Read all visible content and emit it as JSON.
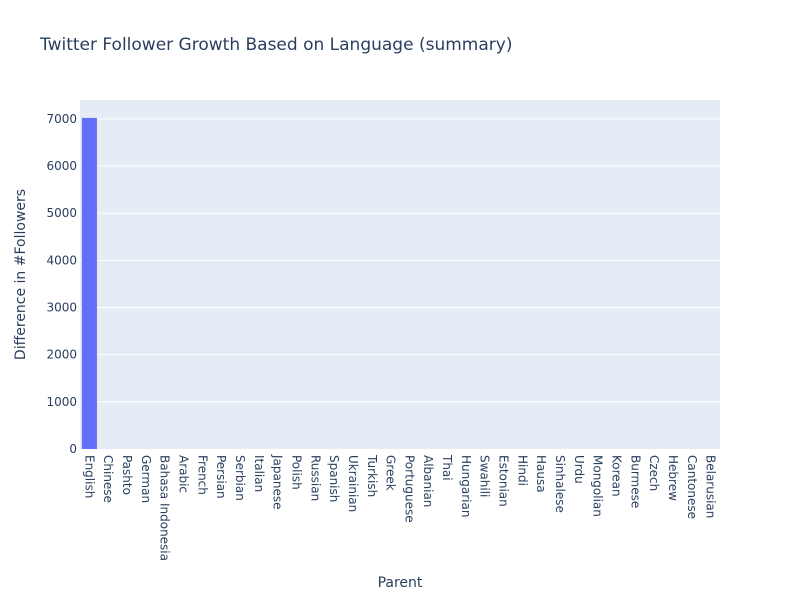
{
  "chart_data": {
    "type": "bar",
    "title": "Twitter Follower Growth Based on Language (summary)",
    "xlabel": "Parent",
    "ylabel": "Difference in #Followers",
    "categories": [
      "English",
      "Chinese",
      "Pashto",
      "German",
      "Bahasa Indonesia",
      "Arabic",
      "French",
      "Persian",
      "Serbian",
      "Italian",
      "Japanese",
      "Polish",
      "Russian",
      "Spanish",
      "Ukrainian",
      "Turkish",
      "Greek",
      "Portuguese",
      "Albanian",
      "Thai",
      "Hungarian",
      "Swahili",
      "Estonian",
      "Hindi",
      "Hausa",
      "Sinhalese",
      "Urdu",
      "Mongolian",
      "Korean",
      "Burmese",
      "Czech",
      "Hebrew",
      "Cantonese",
      "Belarusian"
    ],
    "values": [
      7020,
      0,
      0,
      0,
      0,
      0,
      0,
      0,
      0,
      0,
      0,
      0,
      0,
      0,
      0,
      0,
      0,
      0,
      0,
      0,
      0,
      0,
      0,
      0,
      0,
      0,
      0,
      0,
      0,
      0,
      0,
      0,
      0,
      0
    ],
    "ylim": [
      0,
      7400
    ],
    "yticks": [
      0,
      1000,
      2000,
      3000,
      4000,
      5000,
      6000,
      7000
    ],
    "grid": true,
    "colors": {
      "bar": "#636efa",
      "plot_bg": "#e5ecf6",
      "grid": "#ffffff",
      "text": "#2a3f5f"
    }
  }
}
